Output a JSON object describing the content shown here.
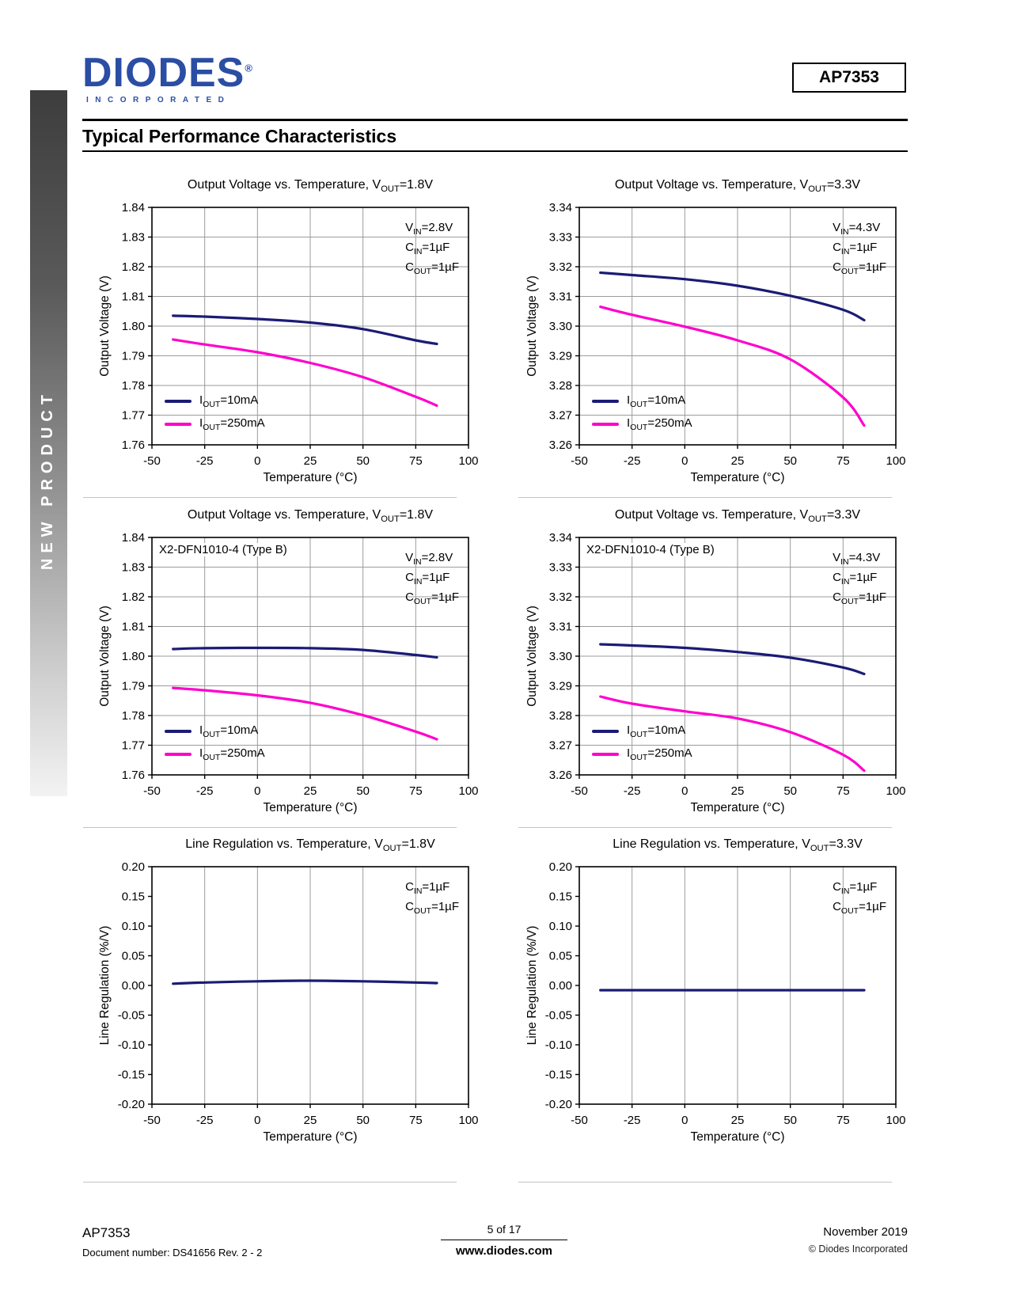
{
  "page": {
    "sidebar_text": "NEW PRODUCT",
    "logo": {
      "name": "DIODES",
      "registered": "®",
      "sub": "INCORPORATED"
    },
    "part_number": "AP7353",
    "section_title": "Typical Performance Characteristics",
    "footer": {
      "part": "AP7353",
      "doc_number": "Document number: DS41656  Rev. 2 - 2",
      "page_info": "5 of 17",
      "website": "www.diodes.com",
      "date": "November 2019",
      "copyright": "© Diodes Incorporated"
    },
    "colors": {
      "logo_blue": "#2B4EA4",
      "navy": "#1B1B75",
      "magenta": "#FF00CC"
    }
  },
  "chart_data": [
    {
      "type": "line",
      "title": "Output Voltage vs. Temperature, V_{OUT}=1.8V",
      "xlabel": "Temperature (°C)",
      "ylabel": "Output Voltage (V)",
      "xlim": [
        -50,
        100
      ],
      "ylim": [
        1.76,
        1.84
      ],
      "xticks": [
        "-50",
        "-25",
        "0",
        "25",
        "50",
        "75",
        "100"
      ],
      "yticks": [
        "1.84",
        "1.83",
        "1.82",
        "1.81",
        "1.80",
        "1.79",
        "1.78",
        "1.77",
        "1.76"
      ],
      "grid": {
        "vertical": true,
        "horizontal": true
      },
      "annotation": [
        "V_{IN}=2.8V",
        "C_{IN}=1µF",
        "C_{OUT}=1µF"
      ],
      "legend": true,
      "x": [
        -40,
        -25,
        0,
        25,
        50,
        75,
        85
      ],
      "series": [
        {
          "name": "I_{OUT}=10mA",
          "color": "#1B1B75",
          "values": [
            1.8035,
            1.8032,
            1.8024,
            1.8012,
            1.799,
            1.7952,
            1.794
          ]
        },
        {
          "name": "I_{OUT}=250mA",
          "color": "#FF00CC",
          "values": [
            1.7955,
            1.7938,
            1.7912,
            1.7876,
            1.7828,
            1.7762,
            1.7732
          ]
        }
      ]
    },
    {
      "type": "line",
      "title": "Output Voltage vs. Temperature, V_{OUT}=3.3V",
      "xlabel": "Temperature (°C)",
      "ylabel": "Output Voltage (V)",
      "xlim": [
        -50,
        100
      ],
      "ylim": [
        3.26,
        3.34
      ],
      "xticks": [
        "-50",
        "-25",
        "0",
        "25",
        "50",
        "75",
        "100"
      ],
      "yticks": [
        "3.34",
        "3.33",
        "3.32",
        "3.31",
        "3.30",
        "3.29",
        "3.28",
        "3.27",
        "3.26"
      ],
      "grid": {
        "vertical": true,
        "horizontal": true
      },
      "annotation": [
        "V_{IN}=4.3V",
        "C_{IN}=1µF",
        "C_{OUT}=1µF"
      ],
      "legend": true,
      "x": [
        -40,
        -25,
        0,
        25,
        50,
        75,
        85
      ],
      "series": [
        {
          "name": "I_{OUT}=10mA",
          "color": "#1B1B75",
          "values": [
            3.318,
            3.3172,
            3.3158,
            3.3136,
            3.3102,
            3.3055,
            3.302
          ]
        },
        {
          "name": "I_{OUT}=250mA",
          "color": "#FF00CC",
          "values": [
            3.3065,
            3.3038,
            3.2998,
            3.2952,
            3.2888,
            3.276,
            3.2665
          ]
        }
      ]
    },
    {
      "type": "line",
      "title": "Output Voltage vs. Temperature, V_{OUT}=1.8V",
      "package_label": "X2-DFN1010-4 (Type B)",
      "xlabel": "Temperature (°C)",
      "ylabel": "Output Voltage (V)",
      "xlim": [
        -50,
        100
      ],
      "ylim": [
        1.76,
        1.84
      ],
      "xticks": [
        "-50",
        "-25",
        "0",
        "25",
        "50",
        "75",
        "100"
      ],
      "yticks": [
        "1.84",
        "1.83",
        "1.82",
        "1.81",
        "1.80",
        "1.79",
        "1.78",
        "1.77",
        "1.76"
      ],
      "grid": {
        "vertical": true,
        "horizontal": true
      },
      "annotation": [
        "V_{IN}=2.8V",
        "C_{IN}=1µF",
        "C_{OUT}=1µF"
      ],
      "legend": true,
      "x": [
        -40,
        -25,
        0,
        25,
        50,
        75,
        85
      ],
      "series": [
        {
          "name": "I_{OUT}=10mA",
          "color": "#1B1B75",
          "values": [
            1.8024,
            1.8027,
            1.8028,
            1.8027,
            1.8021,
            1.8004,
            1.7996
          ]
        },
        {
          "name": "I_{OUT}=250mA",
          "color": "#FF00CC",
          "values": [
            1.7893,
            1.7885,
            1.7868,
            1.7843,
            1.7801,
            1.7746,
            1.772
          ]
        }
      ]
    },
    {
      "type": "line",
      "title": "Output Voltage vs. Temperature, V_{OUT}=3.3V",
      "package_label": "X2-DFN1010-4 (Type B)",
      "xlabel": "Temperature (°C)",
      "ylabel": "Output Voltage (V)",
      "xlim": [
        -50,
        100
      ],
      "ylim": [
        3.26,
        3.34
      ],
      "xticks": [
        "-50",
        "-25",
        "0",
        "25",
        "50",
        "75",
        "100"
      ],
      "yticks": [
        "3.34",
        "3.33",
        "3.32",
        "3.31",
        "3.30",
        "3.29",
        "3.28",
        "3.27",
        "3.26"
      ],
      "grid": {
        "vertical": true,
        "horizontal": true
      },
      "annotation": [
        "V_{IN}=4.3V",
        "C_{IN}=1µF",
        "C_{OUT}=1µF"
      ],
      "legend": true,
      "x": [
        -40,
        -25,
        0,
        25,
        50,
        75,
        85
      ],
      "series": [
        {
          "name": "I_{OUT}=10mA",
          "color": "#1B1B75",
          "values": [
            3.304,
            3.3036,
            3.3028,
            3.3014,
            3.2995,
            3.2962,
            3.294
          ]
        },
        {
          "name": "I_{OUT}=250mA",
          "color": "#FF00CC",
          "values": [
            3.2864,
            3.284,
            3.2814,
            3.279,
            3.2744,
            3.2668,
            3.2614
          ]
        }
      ]
    },
    {
      "type": "line",
      "title": "Line Regulation vs. Temperature, V_{OUT}=1.8V",
      "xlabel": "Temperature (°C)",
      "ylabel": "Line Regulation (%/V)",
      "xlim": [
        -50,
        100
      ],
      "ylim": [
        -0.2,
        0.2
      ],
      "xticks": [
        "-50",
        "-25",
        "0",
        "25",
        "50",
        "75",
        "100"
      ],
      "yticks": [
        "0.20",
        "0.15",
        "0.10",
        "0.05",
        "0.00",
        "-0.05",
        "-0.10",
        "-0.15",
        "-0.20"
      ],
      "grid": {
        "vertical": true,
        "horizontal": false
      },
      "annotation": [
        "C_{IN}=1µF",
        "C_{OUT}=1µF"
      ],
      "legend": false,
      "x": [
        -40,
        -25,
        0,
        25,
        50,
        75,
        85
      ],
      "series": [
        {
          "name": "Line Regulation",
          "color": "#1B1B75",
          "values": [
            0.003,
            0.005,
            0.007,
            0.008,
            0.007,
            0.005,
            0.004
          ]
        }
      ]
    },
    {
      "type": "line",
      "title": "Line Regulation vs. Temperature, V_{OUT}=3.3V",
      "xlabel": "Temperature (°C)",
      "ylabel": "Line Regulation (%/V)",
      "xlim": [
        -50,
        100
      ],
      "ylim": [
        -0.2,
        0.2
      ],
      "xticks": [
        "-50",
        "-25",
        "0",
        "25",
        "50",
        "75",
        "100"
      ],
      "yticks": [
        "0.20",
        "0.15",
        "0.10",
        "0.05",
        "0.00",
        "-0.05",
        "-0.10",
        "-0.15",
        "-0.20"
      ],
      "grid": {
        "vertical": true,
        "horizontal": false
      },
      "annotation": [
        "C_{IN}=1µF",
        "C_{OUT}=1µF"
      ],
      "legend": false,
      "x": [
        -40,
        -25,
        0,
        25,
        50,
        75,
        85
      ],
      "series": [
        {
          "name": "Line Regulation",
          "color": "#1B1B75",
          "values": [
            -0.008,
            -0.008,
            -0.008,
            -0.008,
            -0.008,
            -0.008,
            -0.008
          ]
        }
      ]
    }
  ]
}
